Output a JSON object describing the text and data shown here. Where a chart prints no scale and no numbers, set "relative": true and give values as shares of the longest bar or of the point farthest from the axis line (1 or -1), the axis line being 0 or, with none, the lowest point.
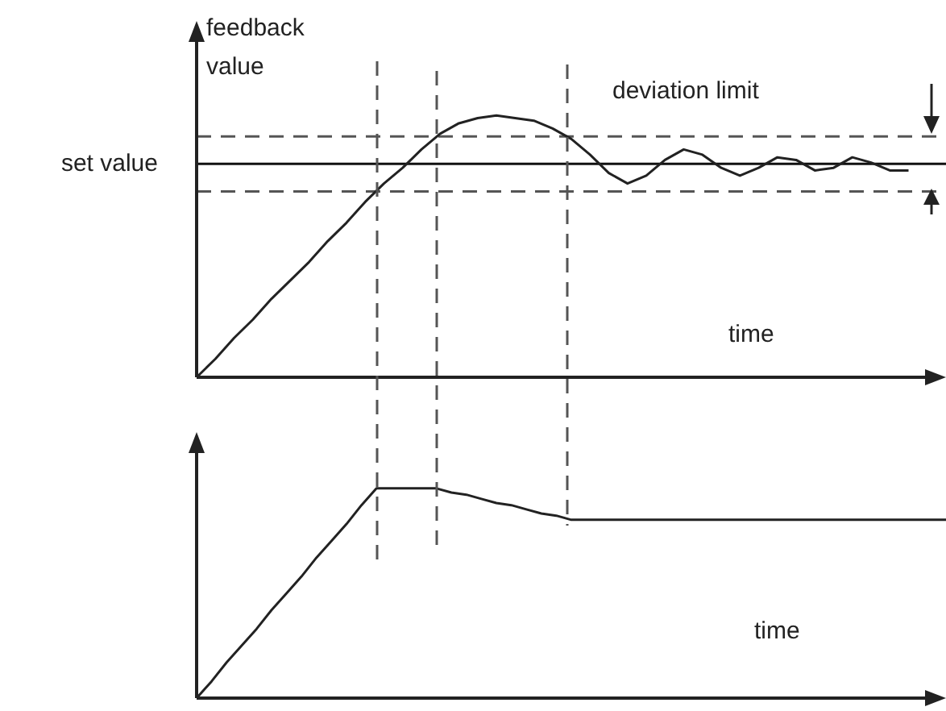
{
  "chart_data": [
    {
      "type": "line",
      "relative": true,
      "legend": false,
      "marker": "none",
      "categories": [
        null,
        null,
        null,
        null,
        null,
        null,
        null,
        null,
        null,
        null,
        null,
        null,
        null,
        null,
        null,
        null,
        null,
        null,
        null,
        null,
        null,
        null,
        null,
        null,
        null,
        null,
        null,
        null,
        null,
        null,
        null,
        null,
        null,
        null,
        null,
        null,
        null,
        null,
        null,
        null,
        null
      ],
      "annotations": [
        "feedback value",
        "deviation limit",
        "time"
      ],
      "series": [
        {
          "color": "#222222",
          "line_style": "solid",
          "values": [
            0,
            0.07,
            0.15,
            0.22,
            0.3,
            0.37,
            0.44,
            0.52,
            0.59,
            0.67,
            0.74,
            0.8,
            0.87,
            0.93,
            0.97,
            0.99,
            1.0,
            0.99,
            0.98,
            0.95,
            0.91,
            0.85,
            0.78,
            0.74,
            0.77,
            0.83,
            0.87,
            0.85,
            0.8,
            0.77,
            0.8,
            0.84,
            0.83,
            0.79,
            0.8,
            0.84,
            0.82,
            0.79,
            0.79,
            null,
            null
          ]
        },
        {
          "name": "set value",
          "color": "#111111",
          "line_style": "solid",
          "values": [
            0.815,
            0.815,
            0.815,
            0.815,
            0.815,
            0.815,
            0.815,
            0.815,
            0.815,
            0.815,
            0.815,
            0.815,
            0.815,
            0.815,
            0.815,
            0.815,
            0.815,
            0.815,
            0.815,
            0.815,
            0.815,
            0.815,
            0.815,
            0.815,
            0.815,
            0.815,
            0.815,
            0.815,
            0.815,
            0.815,
            0.815,
            0.815,
            0.815,
            0.815,
            0.815,
            0.815,
            0.815,
            0.815,
            0.815,
            0.815,
            0.815
          ]
        },
        {
          "color": "#555555",
          "line_style": "dashed",
          "values": [
            0.92,
            0.92,
            0.92,
            0.92,
            0.92,
            0.92,
            0.92,
            0.92,
            0.92,
            0.92,
            0.92,
            0.92,
            0.92,
            0.92,
            0.92,
            0.92,
            0.92,
            0.92,
            0.92,
            0.92,
            0.92,
            0.92,
            0.92,
            0.92,
            0.92,
            0.92,
            0.92,
            0.92,
            0.92,
            0.92,
            0.92,
            0.92,
            0.92,
            0.92,
            0.92,
            0.92,
            0.92,
            0.92,
            0.92,
            0.92,
            0.92
          ]
        },
        {
          "color": "#555555",
          "line_style": "dashed",
          "values": [
            0.71,
            0.71,
            0.71,
            0.71,
            0.71,
            0.71,
            0.71,
            0.71,
            0.71,
            0.71,
            0.71,
            0.71,
            0.71,
            0.71,
            0.71,
            0.71,
            0.71,
            0.71,
            0.71,
            0.71,
            0.71,
            0.71,
            0.71,
            0.71,
            0.71,
            0.71,
            0.71,
            0.71,
            0.71,
            0.71,
            0.71,
            0.71,
            0.71,
            0.71,
            0.71,
            0.71,
            0.71,
            0.71,
            0.71,
            0.71,
            0.71
          ]
        }
      ]
    },
    {
      "type": "line",
      "relative": true,
      "legend": false,
      "marker": "none",
      "categories": [
        null,
        null,
        null,
        null,
        null,
        null,
        null,
        null,
        null,
        null,
        null,
        null,
        null,
        null,
        null,
        null,
        null,
        null,
        null,
        null,
        null,
        null,
        null,
        null,
        null,
        null,
        null,
        null,
        null,
        null,
        null,
        null,
        null,
        null,
        null,
        null,
        null,
        null,
        null,
        null,
        null,
        null,
        null,
        null,
        null,
        null,
        null,
        null,
        null,
        null,
        null
      ],
      "annotations": [
        "time"
      ],
      "series": [
        {
          "color": "#222222",
          "line_style": "solid",
          "values": [
            0,
            0.08,
            0.17,
            0.25,
            0.33,
            0.42,
            0.5,
            0.58,
            0.67,
            0.75,
            0.83,
            0.92,
            1.0,
            1.0,
            1.0,
            1.0,
            1.0,
            0.98,
            0.97,
            0.95,
            0.93,
            0.92,
            0.9,
            0.88,
            0.87,
            0.85,
            0.85,
            0.85,
            0.85,
            0.85,
            0.85,
            0.85,
            0.85,
            0.85,
            0.85,
            0.85,
            0.85,
            0.85,
            0.85,
            0.85,
            0.85,
            0.85,
            0.85,
            0.85,
            0.85,
            0.85,
            0.85,
            0.85,
            0.85,
            0.85,
            0.85
          ]
        }
      ]
    }
  ]
}
